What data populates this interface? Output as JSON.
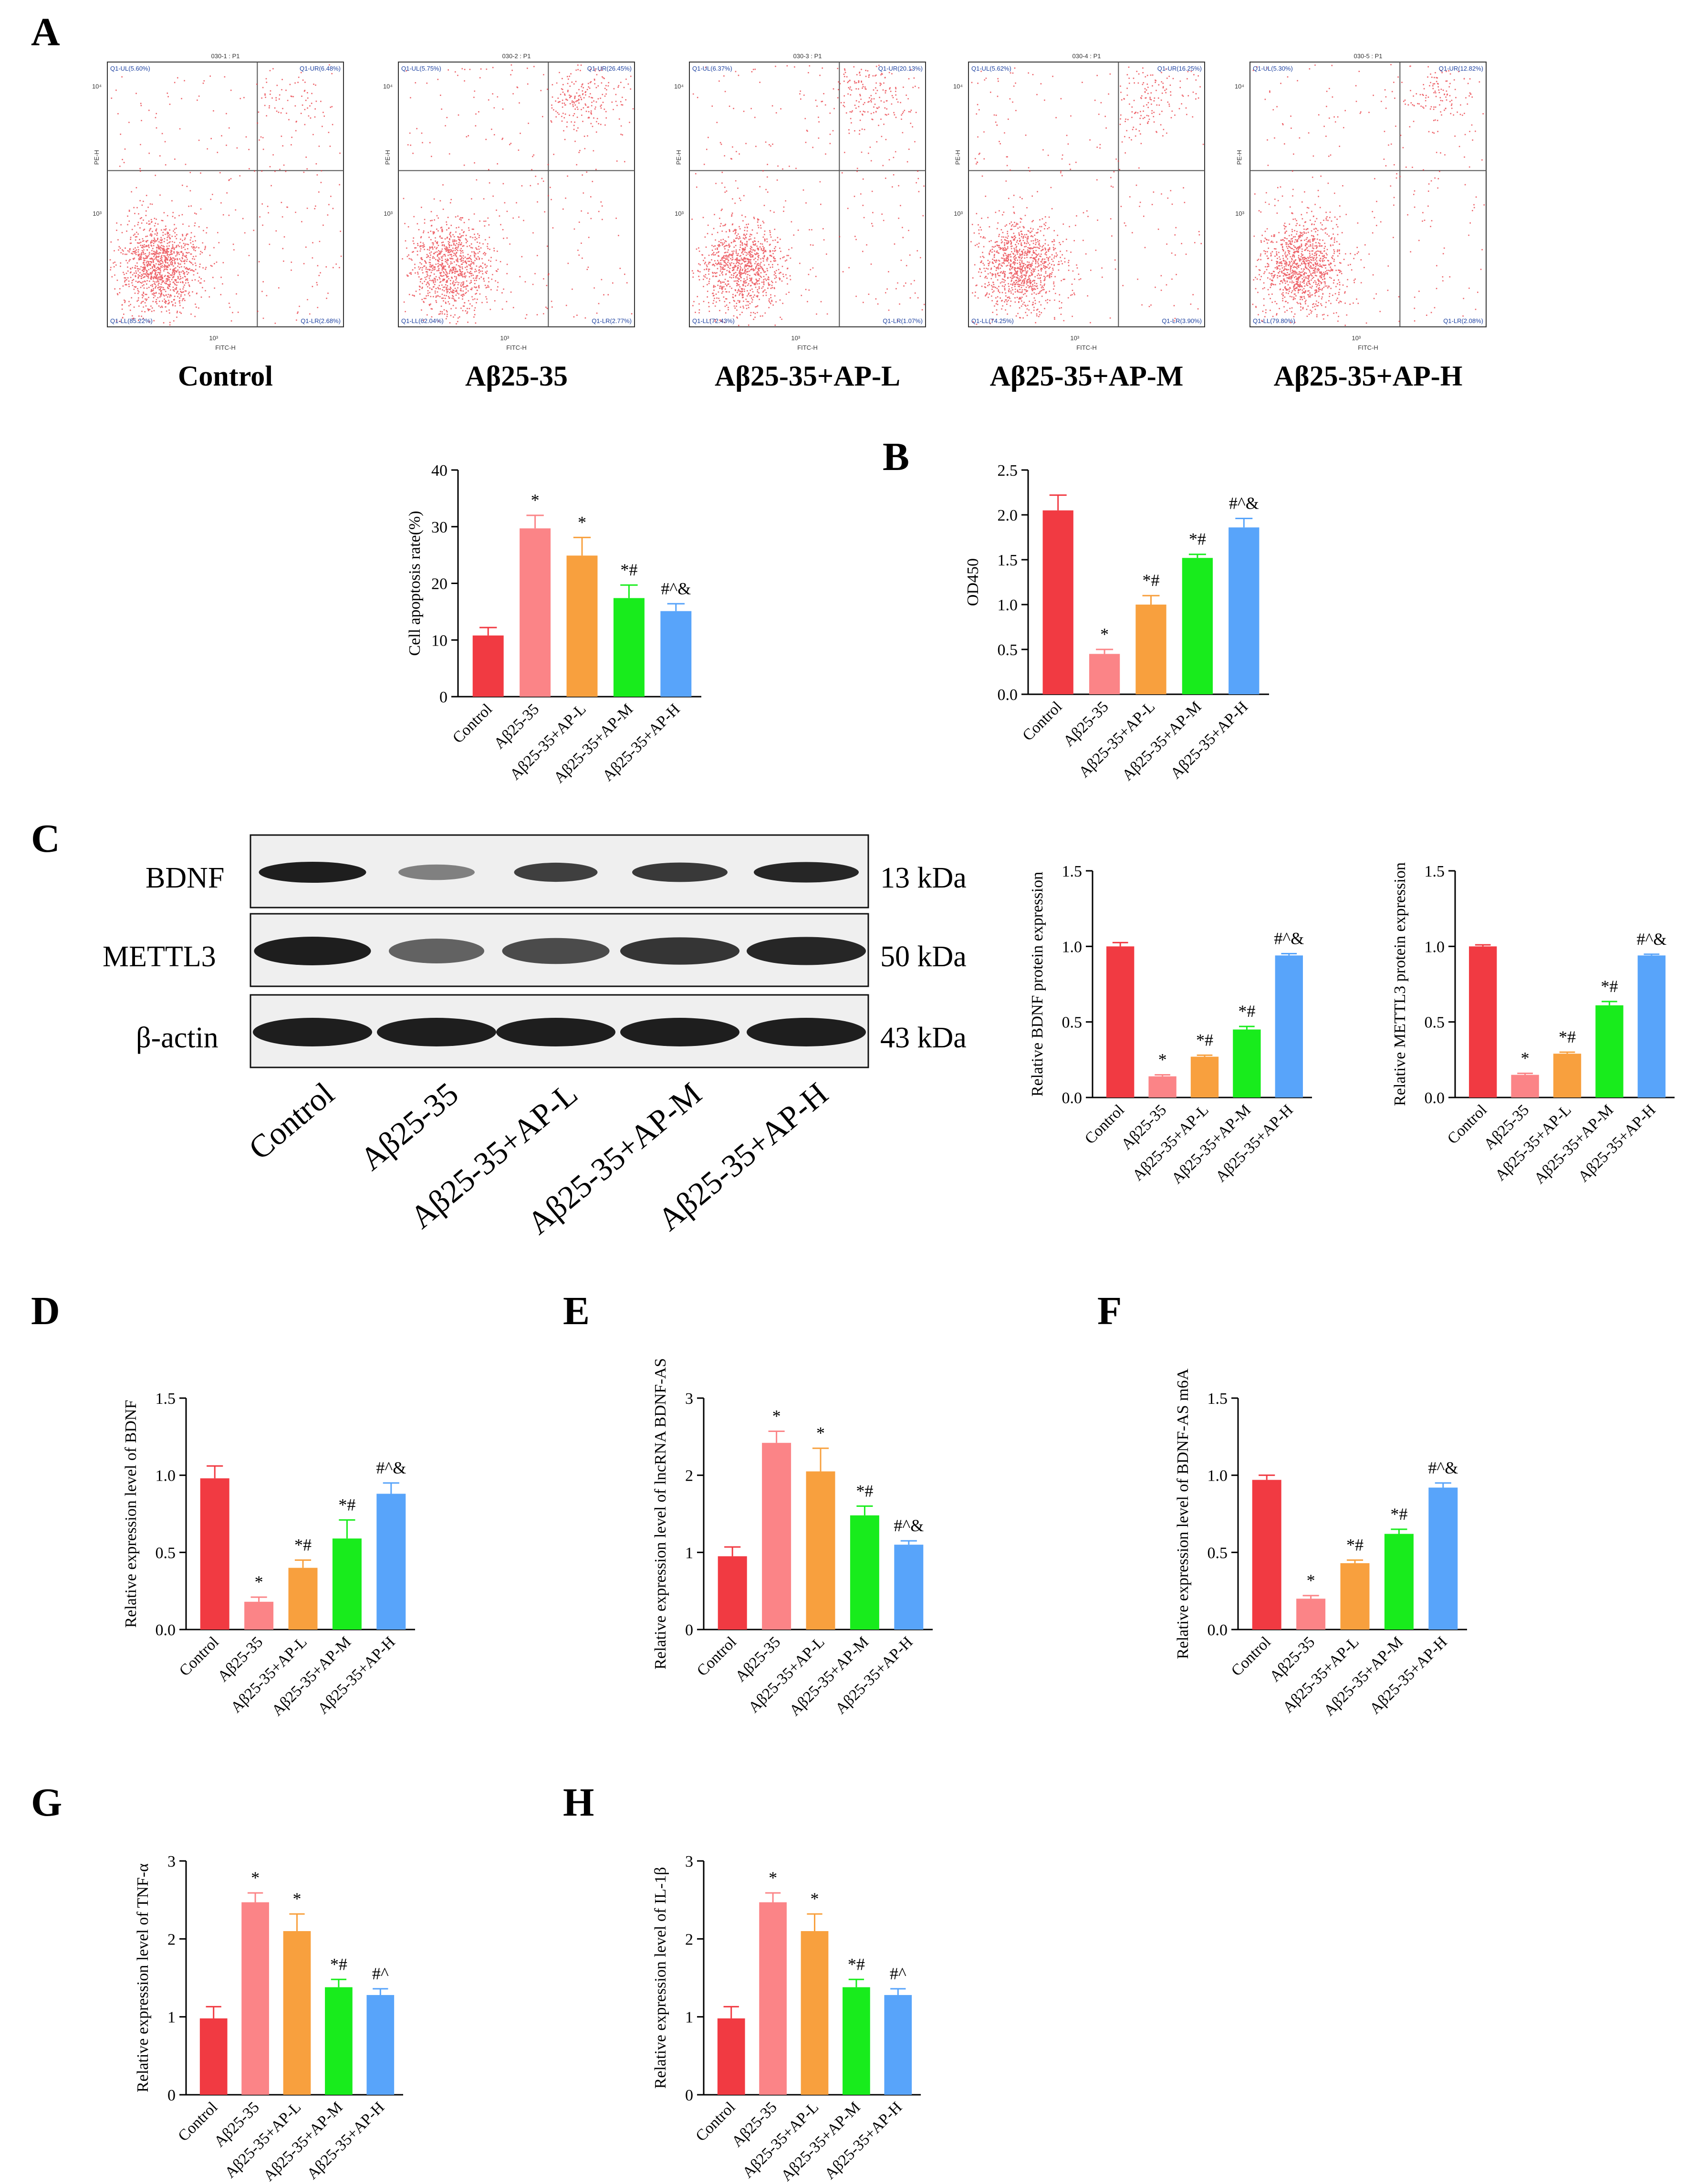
{
  "colors": [
    "#f13a42",
    "#fb8487",
    "#f8a03e",
    "#18ec1c",
    "#58a4fa"
  ],
  "panels": {
    "A": "A",
    "B": "B",
    "C": "C",
    "D": "D",
    "E": "E",
    "F": "F",
    "G": "G",
    "H": "H"
  },
  "flow": [
    {
      "title": "030-1 : P1",
      "name": "Control",
      "ul": "Q1-UL(5.60%)",
      "ur": "Q1-UR(6.48%)",
      "ll": "Q1-LL(85.22%)",
      "lr": "Q1-LR(2.68%)"
    },
    {
      "title": "030-2 : P1",
      "name": "Aβ25-35",
      "ul": "Q1-UL(5.75%)",
      "ur": "Q1-UR(26.45%)",
      "ll": "Q1-LL(62.04%)",
      "lr": "Q1-LR(2.77%)"
    },
    {
      "title": "030-3 : P1",
      "name": "Aβ25-35+AP-L",
      "ul": "Q1-UL(6.37%)",
      "ur": "Q1-UR(20.13%)",
      "ll": "Q1-LL(72.43%)",
      "lr": "Q1-LR(1.07%)"
    },
    {
      "title": "030-4 : P1",
      "name": "Aβ25-35+AP-M",
      "ul": "Q1-UL(5.62%)",
      "ur": "Q1-UR(16.25%)",
      "ll": "Q1-LL(74.25%)",
      "lr": "Q1-LR(3.90%)"
    },
    {
      "title": "030-5 : P1",
      "name": "Aβ25-35+AP-H",
      "ul": "Q1-UL(5.30%)",
      "ur": "Q1-UR(12.82%)",
      "ll": "Q1-LL(79.80%)",
      "lr": "Q1-LR(2.08%)"
    }
  ],
  "flow_axes": {
    "x_label": "FITC-H",
    "y_label": "PE-H",
    "x_tick": "10³",
    "y_tick_top": "10⁴",
    "y_tick_mid": "10³"
  },
  "blot": {
    "rows": [
      {
        "name": "BDNF",
        "kda": "13 kDa"
      },
      {
        "name": "METTL3",
        "kda": "50 kDa"
      },
      {
        "name": "β-actin",
        "kda": "43 kDa"
      }
    ],
    "lanes": [
      "Control",
      "Aβ25-35",
      "Aβ25-35+AP-L",
      "Aβ25-35+AP-M",
      "Aβ25-35+AP-H"
    ]
  },
  "chart_data": [
    {
      "id": "apoptosis",
      "type": "bar",
      "ylabel": "Cell apoptosis rate(%)",
      "ylim": [
        0,
        40
      ],
      "yticks": [
        "0",
        "10",
        "20",
        "30",
        "40"
      ],
      "categories": [
        "Control",
        "Aβ25-35",
        "Aβ25-35+AP-L",
        "Aβ25-35+AP-M",
        "Aβ25-35+AP-H"
      ],
      "values": [
        10.8,
        29.7,
        24.9,
        17.4,
        15.1
      ],
      "errors": [
        1.4,
        2.3,
        3.2,
        2.3,
        1.3
      ],
      "sig": [
        "",
        "*",
        "*",
        "*#",
        "#^&"
      ]
    },
    {
      "id": "od450",
      "type": "bar",
      "ylabel": "OD450",
      "ylim": [
        0,
        2.5
      ],
      "yticks": [
        "0.0",
        "0.5",
        "1.0",
        "1.5",
        "2.0",
        "2.5"
      ],
      "categories": [
        "Control",
        "Aβ25-35",
        "Aβ25-35+AP-L",
        "Aβ25-35+AP-M",
        "Aβ25-35+AP-H"
      ],
      "values": [
        2.05,
        0.45,
        1.0,
        1.52,
        1.86
      ],
      "errors": [
        0.17,
        0.05,
        0.1,
        0.04,
        0.1
      ],
      "sig": [
        "",
        "*",
        "*#",
        "*#",
        "#^&"
      ]
    },
    {
      "id": "bdnf_protein",
      "type": "bar",
      "ylabel": "Relative BDNF protein expression",
      "ylim": [
        0,
        1.5
      ],
      "yticks": [
        "0.0",
        "0.5",
        "1.0",
        "1.5"
      ],
      "categories": [
        "Control",
        "Aβ25-35",
        "Aβ25-35+AP-L",
        "Aβ25-35+AP-M",
        "Aβ25-35+AP-H"
      ],
      "values": [
        1.0,
        0.14,
        0.27,
        0.45,
        0.94
      ],
      "errors": [
        0.025,
        0.01,
        0.01,
        0.02,
        0.012
      ],
      "sig": [
        "",
        "*",
        "*#",
        "*#",
        "#^&"
      ]
    },
    {
      "id": "mettl3_protein",
      "type": "bar",
      "ylabel": "Relative METTL3 protein expression",
      "ylim": [
        0,
        1.5
      ],
      "yticks": [
        "0.0",
        "0.5",
        "1.0",
        "1.5"
      ],
      "categories": [
        "Control",
        "Aβ25-35",
        "Aβ25-35+AP-L",
        "Aβ25-35+AP-M",
        "Aβ25-35+AP-H"
      ],
      "values": [
        1.0,
        0.15,
        0.29,
        0.61,
        0.94
      ],
      "errors": [
        0.01,
        0.01,
        0.01,
        0.025,
        0.008
      ],
      "sig": [
        "",
        "*",
        "*#",
        "*#",
        "#^&"
      ]
    },
    {
      "id": "bdnf_rna",
      "type": "bar",
      "ylabel": "Relative expression level of BDNF",
      "ylim": [
        0,
        1.5
      ],
      "yticks": [
        "0.0",
        "0.5",
        "1.0",
        "1.5"
      ],
      "categories": [
        "Control",
        "Aβ25-35",
        "Aβ25-35+AP-L",
        "Aβ25-35+AP-M",
        "Aβ25-35+AP-H"
      ],
      "values": [
        0.98,
        0.18,
        0.4,
        0.59,
        0.88
      ],
      "errors": [
        0.08,
        0.03,
        0.05,
        0.12,
        0.07
      ],
      "sig": [
        "",
        "*",
        "*#",
        "*#",
        "#^&"
      ]
    },
    {
      "id": "lncrna",
      "type": "bar",
      "ylabel": "Relative expression level of lncRNA BDNF-AS",
      "ylim": [
        0,
        3
      ],
      "yticks": [
        "0",
        "1",
        "2",
        "3"
      ],
      "categories": [
        "Control",
        "Aβ25-35",
        "Aβ25-35+AP-L",
        "Aβ25-35+AP-M",
        "Aβ25-35+AP-H"
      ],
      "values": [
        0.95,
        2.42,
        2.05,
        1.48,
        1.1
      ],
      "errors": [
        0.12,
        0.15,
        0.3,
        0.12,
        0.05
      ],
      "sig": [
        "",
        "*",
        "*",
        "*#",
        "#^&"
      ]
    },
    {
      "id": "m6a",
      "type": "bar",
      "ylabel": "Relative expression level of BDNF-AS m6A",
      "ylim": [
        0,
        1.5
      ],
      "yticks": [
        "0.0",
        "0.5",
        "1.0",
        "1.5"
      ],
      "categories": [
        "Control",
        "Aβ25-35",
        "Aβ25-35+AP-L",
        "Aβ25-35+AP-M",
        "Aβ25-35+AP-H"
      ],
      "values": [
        0.97,
        0.2,
        0.43,
        0.62,
        0.92
      ],
      "errors": [
        0.03,
        0.02,
        0.02,
        0.03,
        0.03
      ],
      "sig": [
        "",
        "*",
        "*#",
        "*#",
        "#^&"
      ]
    },
    {
      "id": "tnf",
      "type": "bar",
      "ylabel": "Relative expression level of TNF-α",
      "ylim": [
        0,
        3
      ],
      "yticks": [
        "0",
        "1",
        "2",
        "3"
      ],
      "categories": [
        "Control",
        "Aβ25-35",
        "Aβ25-35+AP-L",
        "Aβ25-35+AP-M",
        "Aβ25-35+AP-H"
      ],
      "values": [
        0.98,
        2.47,
        2.1,
        1.38,
        1.28
      ],
      "errors": [
        0.15,
        0.12,
        0.22,
        0.1,
        0.08
      ],
      "sig": [
        "",
        "*",
        "*",
        "*#",
        "#^"
      ]
    },
    {
      "id": "il1b",
      "type": "bar",
      "ylabel": "Relative expression level of IL-1β",
      "ylim": [
        0,
        3
      ],
      "yticks": [
        "0",
        "1",
        "2",
        "3"
      ],
      "categories": [
        "Control",
        "Aβ25-35",
        "Aβ25-35+AP-L",
        "Aβ25-35+AP-M",
        "Aβ25-35+AP-H"
      ],
      "values": [
        0.98,
        2.47,
        2.1,
        1.38,
        1.28
      ],
      "errors": [
        0.15,
        0.12,
        0.22,
        0.1,
        0.08
      ],
      "sig": [
        "",
        "*",
        "*",
        "*#",
        "#^"
      ]
    }
  ]
}
